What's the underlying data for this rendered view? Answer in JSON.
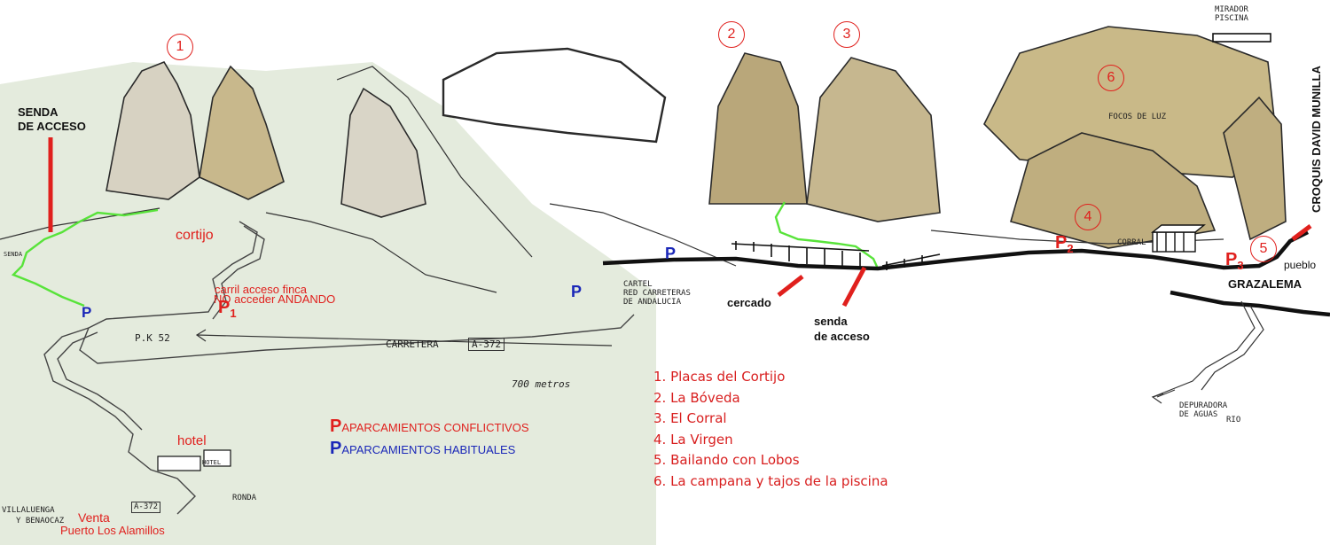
{
  "colors": {
    "background_left": "#e4ebdd",
    "route_red": "#e0201d",
    "parking_blue": "#1a27b8",
    "trail_green": "#58e33a",
    "rock_tan": "#b3a170",
    "road_black": "#111111"
  },
  "sectors": [
    {
      "id": "1",
      "label": "1"
    },
    {
      "id": "2",
      "label": "2"
    },
    {
      "id": "3",
      "label": "3"
    },
    {
      "id": "4",
      "label": "4"
    },
    {
      "id": "5",
      "label": "5"
    },
    {
      "id": "6",
      "label": "6"
    }
  ],
  "labels": {
    "senda_acceso_left": [
      "SENDA",
      "DE ACCESO"
    ],
    "cortijo": "cortijo",
    "carril": "carril acceso finca",
    "no_acceder": "NO acceder ANDANDO",
    "cercado": "cercado",
    "senda_acceso_center": [
      "senda",
      "de acceso"
    ],
    "grazalema": "GRAZALEMA",
    "pueblo": "pueblo",
    "hotel": "hotel",
    "venta": "Venta",
    "puerto": "Puerto Los Alamillos",
    "croquis": "CROQUIS DAVID MUNILLA"
  },
  "sketch_text": {
    "pk": "P.K 52",
    "carretera": "CARRETERA",
    "road_code": "A-372",
    "road_code_bottom": "A-372",
    "distance": "700 metros",
    "cartel": [
      "CARTEL",
      "RED CARRETERAS",
      "DE ANDALUCIA"
    ],
    "mirador": [
      "MIRADOR",
      "PISCINA"
    ],
    "focos": "FOCOS DE LUZ",
    "corral": "CORRAL",
    "depuradora": [
      "DEPURADORA",
      "DE AGUAS"
    ],
    "rio": "RIO",
    "ronda": "RONDA",
    "villaluenga": "VILLALUENGA",
    "villaluenga2": "Y BENAOCAZ",
    "hotel_small": "HOTEL",
    "senda_small": "SENDA"
  },
  "parking_markers": [
    {
      "id": "P1",
      "letter": "P",
      "sub": "1",
      "type": "conflictivo"
    },
    {
      "id": "P2",
      "letter": "P",
      "sub": "2",
      "type": "conflictivo"
    },
    {
      "id": "P3",
      "letter": "P",
      "sub": "3",
      "type": "conflictivo"
    },
    {
      "id": "PA",
      "letter": "P",
      "sub": "",
      "type": "habitual"
    },
    {
      "id": "PB",
      "letter": "P",
      "sub": "",
      "type": "habitual"
    },
    {
      "id": "PC",
      "letter": "P",
      "sub": "",
      "type": "habitual"
    }
  ],
  "parking_legend": {
    "conflictivos": {
      "letter": "P",
      "text": "APARCAMIENTOS CONFLICTIVOS"
    },
    "habituales": {
      "letter": "P",
      "text": "APARCAMIENTOS HABITUALES"
    }
  },
  "legend": [
    "1. Placas del Cortijo",
    "2. La Bóveda",
    "3. El Corral",
    "4. La Virgen",
    "5. Bailando con Lobos",
    "6. La campana y tajos de la piscina"
  ]
}
